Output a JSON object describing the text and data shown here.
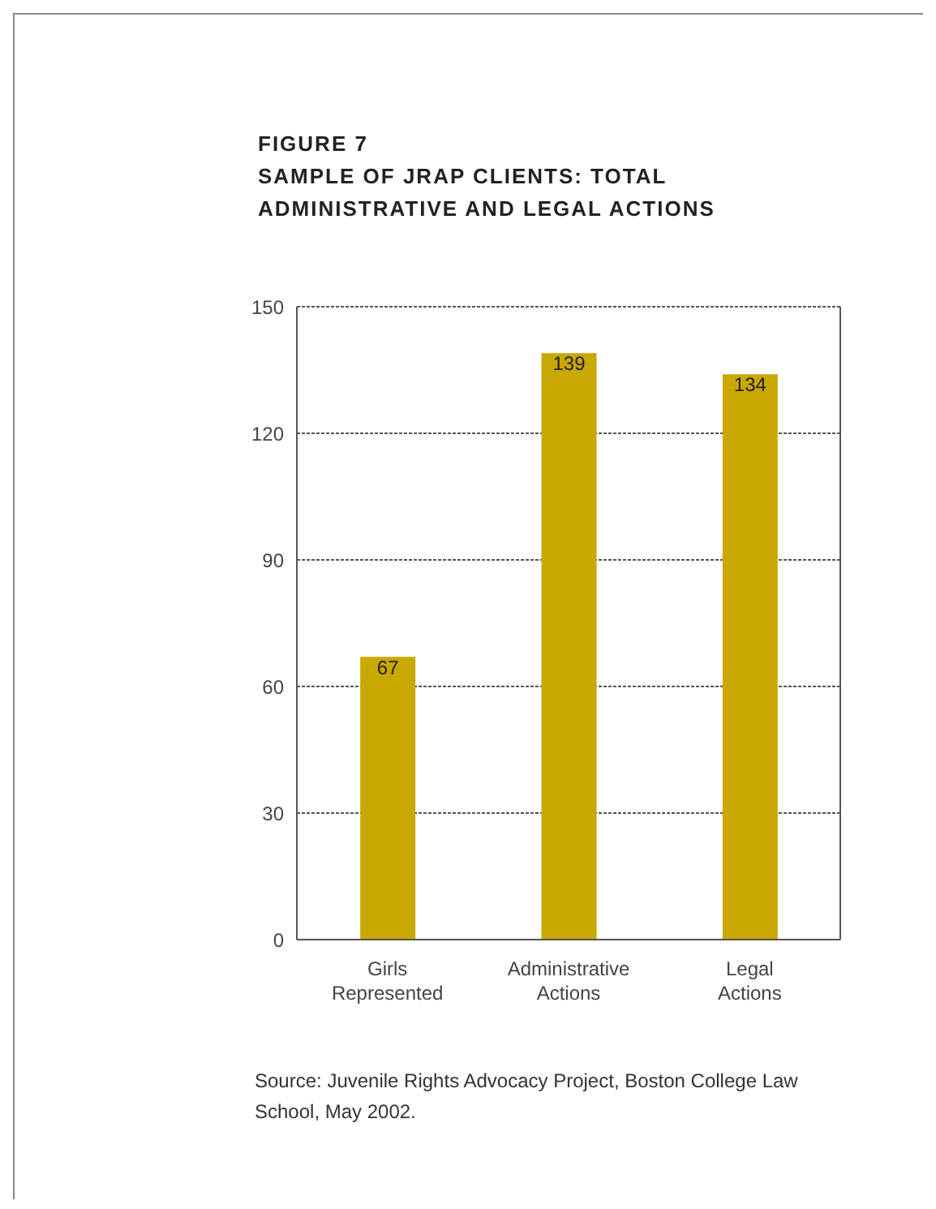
{
  "chart_data": {
    "type": "bar",
    "title": "FIGURE 7",
    "subtitle": "SAMPLE OF JRAP CLIENTS: TOTAL ADMINISTRATIVE AND LEGAL ACTIONS",
    "categories": [
      "Girls Represented",
      "Administrative Actions",
      "Legal Actions"
    ],
    "values": [
      67,
      139,
      134
    ],
    "color": "#c9a800",
    "ylim": [
      0,
      150
    ],
    "yticks": [
      0,
      30,
      60,
      90,
      120,
      150
    ],
    "grid": "y",
    "data_labels": true,
    "annotations": [
      "Source: Juvenile Rights Advocacy Project, Boston College Law School, May 2002."
    ]
  }
}
